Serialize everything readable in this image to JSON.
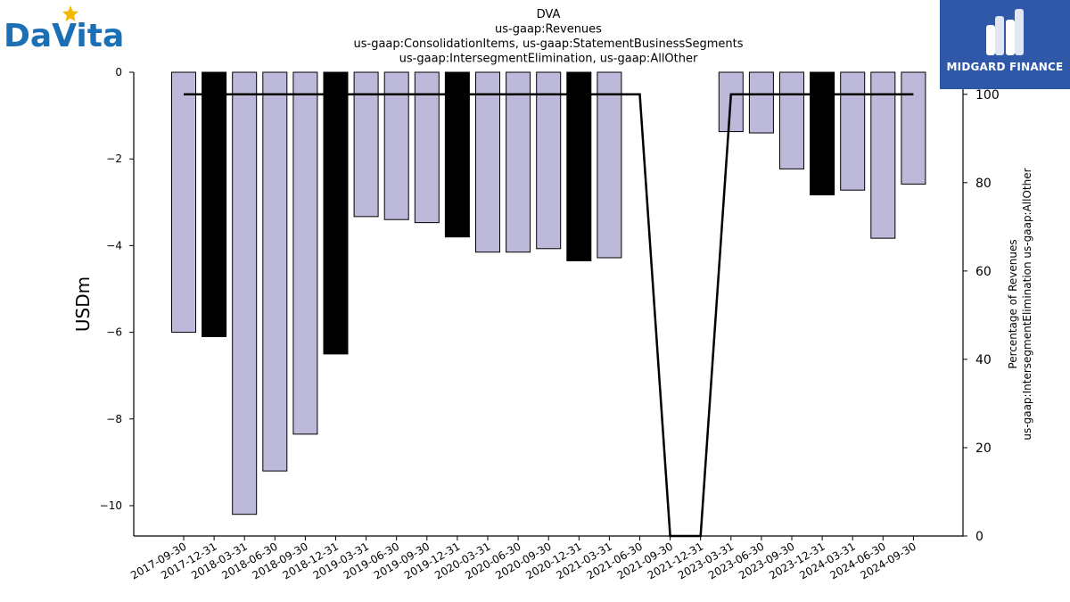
{
  "header": {
    "title_lines": [
      "DVA",
      "us-gaap:Revenues",
      "us-gaap:ConsolidationItems, us-gaap:StatementBusinessSegments",
      "us-gaap:IntersegmentElimination, us-gaap:AllOther"
    ]
  },
  "logos": {
    "left_text": "DaVita",
    "right_text": "MIDGARD FINANCE"
  },
  "colors": {
    "bar_default": "#bcb9da",
    "bar_q4": "#000000",
    "line": "#000000",
    "brand_blue": "#1a6fb5",
    "brand_star": "#f5b800",
    "midgard_blue": "#2f58a8"
  },
  "chart_data": {
    "type": "bar",
    "categories": [
      "2017-09-30",
      "2017-12-31",
      "2018-03-31",
      "2018-06-30",
      "2018-09-30",
      "2018-12-31",
      "2019-03-31",
      "2019-06-30",
      "2019-09-30",
      "2019-12-31",
      "2020-03-31",
      "2020-06-30",
      "2020-09-30",
      "2020-12-31",
      "2021-03-31",
      "2021-06-30",
      "2021-09-30",
      "2021-12-31",
      "2023-03-31",
      "2023-06-30",
      "2023-09-30",
      "2023-12-31",
      "2024-03-31",
      "2024-06-30",
      "2024-09-30"
    ],
    "series": [
      {
        "values": [
          -6.0,
          -6.1,
          -10.2,
          -9.2,
          -8.35,
          -6.5,
          -3.33,
          -3.4,
          -3.47,
          -3.8,
          -4.15,
          -4.15,
          -4.07,
          -4.35,
          -4.28,
          null,
          null,
          null,
          -1.37,
          -1.4,
          -2.23,
          -2.83,
          -2.72,
          -3.83,
          -2.58
        ],
        "axis": "left",
        "highlighted_categories": [
          "2017-12-31",
          "2018-12-31",
          "2019-12-31",
          "2020-12-31",
          "2023-12-31"
        ]
      },
      {
        "type": "line",
        "values": [
          100,
          100,
          100,
          100,
          100,
          100,
          100,
          100,
          100,
          100,
          100,
          100,
          100,
          100,
          100,
          100,
          0,
          0,
          100,
          100,
          100,
          100,
          100,
          100,
          100
        ],
        "axis": "right"
      }
    ],
    "ylabel": "USDm",
    "ylim": [
      -10.7,
      0
    ],
    "yticks": [
      0,
      -2,
      -4,
      -6,
      -8,
      -10
    ],
    "ytick_labels": [
      "0",
      "−2",
      "−4",
      "−6",
      "−8",
      "−10"
    ],
    "y2label_lines": [
      "Percentage of Revenues",
      "us-gaap:IntersegmentElimination us-gaap:AllOther"
    ],
    "y2lim": [
      0,
      105
    ],
    "y2ticks": [
      0,
      20,
      40,
      60,
      80,
      100
    ],
    "grid": false,
    "legend": "none"
  }
}
